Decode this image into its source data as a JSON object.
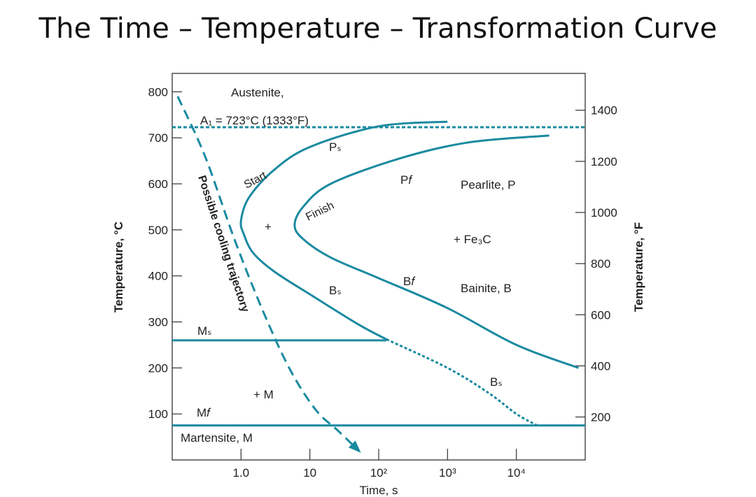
{
  "title": "The Time – Temperature – Transformation Curve",
  "chart_data": {
    "type": "line",
    "xlabel": "Time, s",
    "ylabel_left": "Temperature, °C",
    "ylabel_right": "Temperature, °F",
    "xscale": "log",
    "xlim_s": [
      0.1,
      100000
    ],
    "ylim_C": [
      0,
      840
    ],
    "xticks": [
      {
        "value": 1,
        "label": "1.0"
      },
      {
        "value": 10,
        "label": "10"
      },
      {
        "value": 100,
        "label": "10²"
      },
      {
        "value": 1000,
        "label": "10³"
      },
      {
        "value": 10000,
        "label": "10⁴"
      }
    ],
    "yticks_C": [
      {
        "value": 100,
        "label": "100"
      },
      {
        "value": 200,
        "label": "200"
      },
      {
        "value": 300,
        "label": "300"
      },
      {
        "value": 400,
        "label": "400"
      },
      {
        "value": 500,
        "label": "500"
      },
      {
        "value": 600,
        "label": "600"
      },
      {
        "value": 700,
        "label": "700"
      },
      {
        "value": 800,
        "label": "800"
      }
    ],
    "yticks_F": [
      {
        "value": 200,
        "label": "200"
      },
      {
        "value": 400,
        "label": "400"
      },
      {
        "value": 600,
        "label": "600"
      },
      {
        "value": 800,
        "label": "800"
      },
      {
        "value": 1000,
        "label": "1000"
      },
      {
        "value": 1200,
        "label": "1200"
      },
      {
        "value": 1400,
        "label": "1400"
      }
    ],
    "eutectoid_C": 723,
    "Ms_C": 260,
    "Mf_C": 75,
    "series": [
      {
        "key": "start",
        "style": "solid",
        "points": [
          [
            1000,
            735
          ],
          [
            100,
            725
          ],
          [
            10,
            680
          ],
          [
            3,
            630
          ],
          [
            1.3,
            570
          ],
          [
            1.0,
            520
          ],
          [
            1.1,
            490
          ],
          [
            1.5,
            450
          ],
          [
            3,
            410
          ],
          [
            10,
            360
          ],
          [
            50,
            295
          ],
          [
            130,
            262
          ]
        ]
      },
      {
        "key": "finish",
        "style": "solid",
        "points": [
          [
            30000,
            705
          ],
          [
            2000,
            690
          ],
          [
            200,
            655
          ],
          [
            20,
            600
          ],
          [
            8,
            550
          ],
          [
            6,
            510
          ],
          [
            8,
            480
          ],
          [
            20,
            440
          ],
          [
            100,
            395
          ],
          [
            1000,
            330
          ],
          [
            10000,
            250
          ],
          [
            80000,
            200
          ]
        ]
      },
      {
        "key": "bainite-start-ext",
        "style": "dashed",
        "points": [
          [
            130,
            262
          ],
          [
            1000,
            200
          ],
          [
            4000,
            145
          ],
          [
            10000,
            100
          ],
          [
            20000,
            75
          ]
        ]
      },
      {
        "key": "cooling",
        "style": "dashed",
        "points": [
          [
            0.12,
            790
          ],
          [
            0.3,
            660
          ],
          [
            0.8,
            480
          ],
          [
            2,
            330
          ],
          [
            5,
            200
          ],
          [
            12,
            110
          ],
          [
            25,
            65
          ],
          [
            50,
            22
          ]
        ]
      }
    ],
    "annotations": {
      "austenite": "Austenite,",
      "a1": "A₁ = 723°C (1333°F)",
      "ps": "Pₛ",
      "pf": "P𝑓",
      "start": "Start",
      "finish": "Finish",
      "pearlite": "Pearlite, P",
      "plus_top": "+",
      "fe3c": "+ Fe₃C",
      "bs": "Bₛ",
      "bf": "B𝑓",
      "bainite": "Bainite, B",
      "bs2": "Bₛ",
      "ms": "Mₛ",
      "mf": "M𝑓",
      "plus_m": "+ M",
      "martensite": "Martensite, M",
      "cooling": "Possible cooling trajectory"
    },
    "colors": {
      "curve": "#1a8aa0",
      "axis": "#333333",
      "text": "#222222"
    },
    "grid": false
  }
}
